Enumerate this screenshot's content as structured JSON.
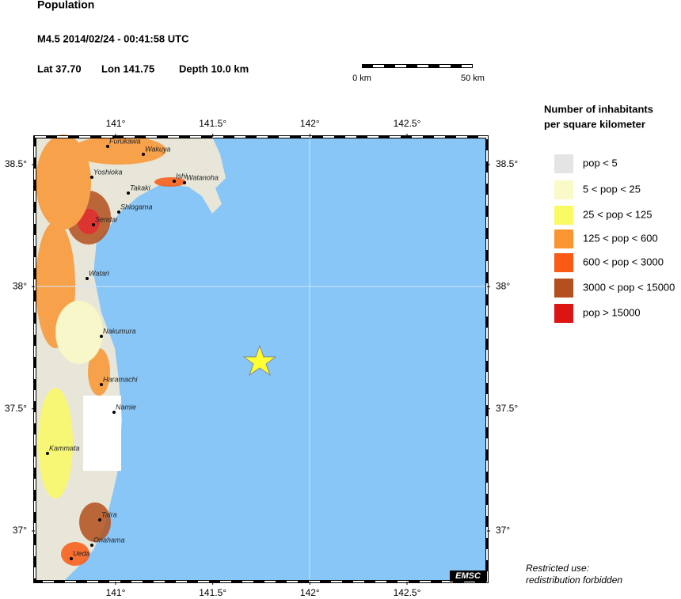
{
  "header": {
    "title": "Population",
    "event": "M4.5  2014/02/24 - 00:41:58 UTC",
    "lat": "Lat 37.70",
    "lon": "Lon 141.75",
    "depth": "Depth  10.0 km"
  },
  "scale_bar": {
    "start": "0 km",
    "end": "50 km"
  },
  "map": {
    "lon_ticks": [
      {
        "value": 141,
        "label": "141°"
      },
      {
        "value": 141.5,
        "label": "141.5°"
      },
      {
        "value": 142,
        "label": "142°"
      },
      {
        "value": 142.5,
        "label": "142.5°"
      }
    ],
    "lat_ticks": [
      {
        "value": 38.5,
        "label": "38.5°"
      },
      {
        "value": 38,
        "label": "38°"
      },
      {
        "value": 37.5,
        "label": "37.5°"
      },
      {
        "value": 37,
        "label": "37°"
      }
    ],
    "cities": [
      "Furukawa",
      "Wakuya",
      "Yoshioka",
      "Ishi",
      "Watanoha",
      "Takaki",
      "Shiogama",
      "Sendai",
      "Watari",
      "Nakumura",
      "Haramachi",
      "Namie",
      "Kammata",
      "Taira",
      "Onahama",
      "Ueda"
    ],
    "badge": "EMSC"
  },
  "legend": {
    "title": [
      "Number of inhabitants",
      "per square kilometer"
    ],
    "items": [
      {
        "label": "pop < 5",
        "color": "#e4e4e4"
      },
      {
        "label": "5 < pop < 25",
        "color": "#fafac8"
      },
      {
        "label": "25 < pop < 125",
        "color": "#fafa64"
      },
      {
        "label": "125 < pop < 600",
        "color": "#fa9632"
      },
      {
        "label": "600 < pop < 3000",
        "color": "#fa5a14"
      },
      {
        "label": "3000 < pop < 15000",
        "color": "#b4501e"
      },
      {
        "label": "pop > 15000",
        "color": "#dc1414"
      }
    ]
  },
  "notice": [
    "Restricted use:",
    "redistribution forbidden"
  ]
}
